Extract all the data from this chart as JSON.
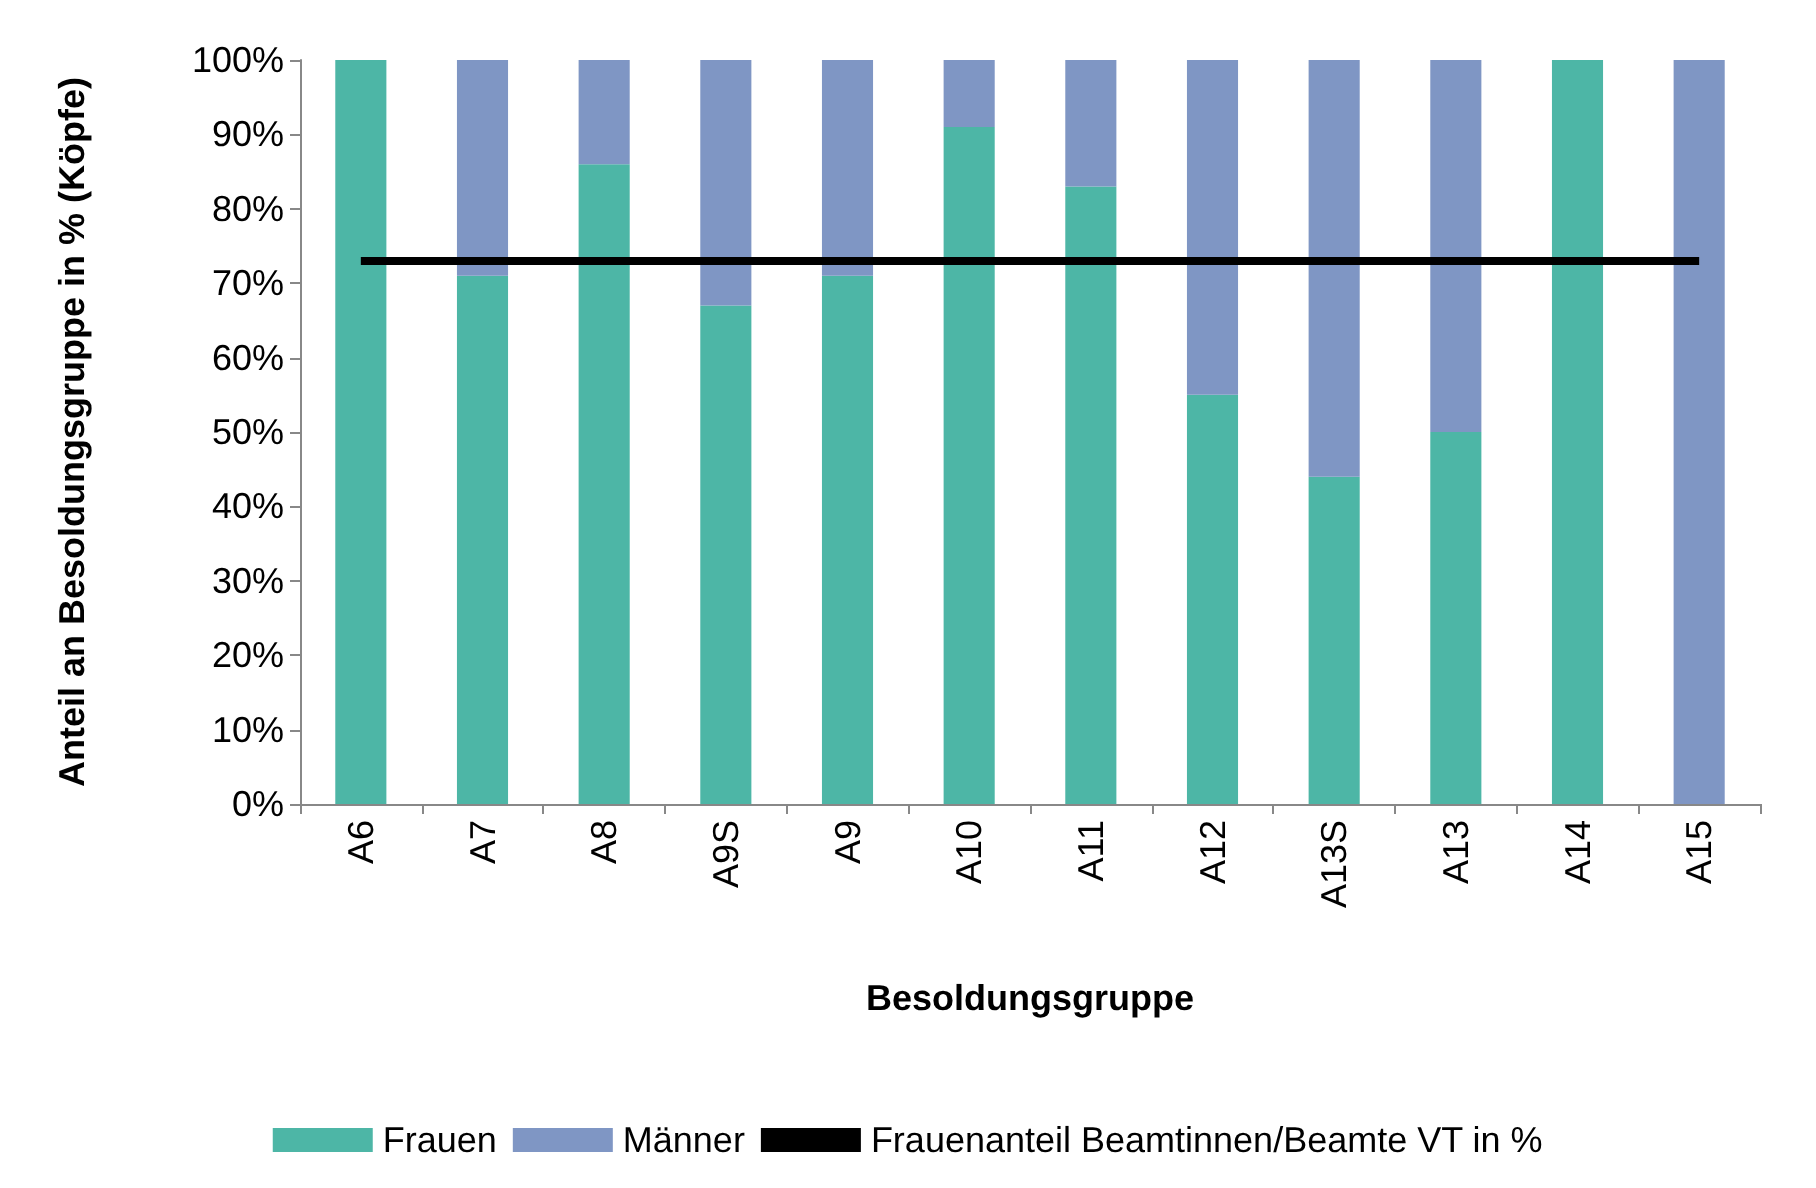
{
  "chart_data": {
    "type": "bar",
    "stacked": true,
    "xlabel": "Besoldungsgruppe",
    "ylabel": "Anteil an Besoldungsgruppe in % (Köpfe)",
    "categories": [
      "A6",
      "A7",
      "A8",
      "A9S",
      "A9",
      "A10",
      "A11",
      "A12",
      "A13S",
      "A13",
      "A14",
      "A15"
    ],
    "series": [
      {
        "name": "Frauen",
        "color": "#4db6a6",
        "values": [
          100,
          71,
          86,
          67,
          71,
          91,
          83,
          55,
          44,
          50,
          100,
          0
        ]
      },
      {
        "name": "Männer",
        "color": "#7f96c4",
        "values": [
          0,
          29,
          14,
          33,
          29,
          9,
          17,
          45,
          56,
          50,
          0,
          100
        ]
      },
      {
        "name": "Frauenanteil Beamtinnen/Beamte VT in %",
        "type": "line",
        "color": "#000000",
        "values": [
          73,
          73,
          73,
          73,
          73,
          73,
          73,
          73,
          73,
          73,
          73,
          73
        ]
      }
    ],
    "ylim": [
      0,
      100
    ],
    "yticks": [
      {
        "value": 0,
        "label": "0%"
      },
      {
        "value": 10,
        "label": "10%"
      },
      {
        "value": 20,
        "label": "20%"
      },
      {
        "value": 30,
        "label": "30%"
      },
      {
        "value": 40,
        "label": "40%"
      },
      {
        "value": 50,
        "label": "50%"
      },
      {
        "value": 60,
        "label": "60%"
      },
      {
        "value": 70,
        "label": "70%"
      },
      {
        "value": 80,
        "label": "80%"
      },
      {
        "value": 90,
        "label": "90%"
      },
      {
        "value": 100,
        "label": "100%"
      }
    ],
    "grid": false,
    "legend": "bottom",
    "marker": "none",
    "line_style": "solid"
  }
}
